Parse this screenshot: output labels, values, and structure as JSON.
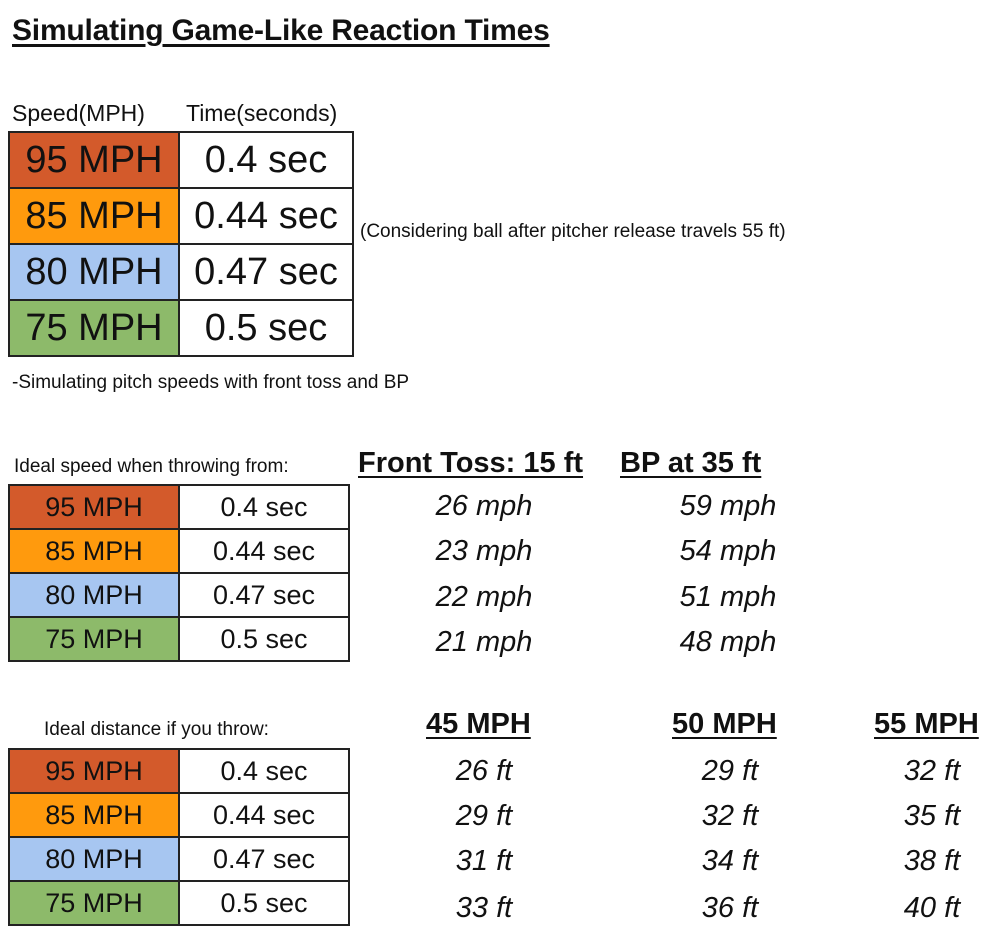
{
  "title": "Simulating Game-Like Reaction Times",
  "colors": {
    "p95": "#d35a2b",
    "p85": "#ff9a0d",
    "p80": "#a7c6f1",
    "p75": "#8dba6a"
  },
  "table1": {
    "header_speed": "Speed(MPH)",
    "header_time": "Time(seconds)",
    "rows": [
      {
        "speed": "95 MPH",
        "time": "0.4 sec"
      },
      {
        "speed": "85 MPH",
        "time": "0.44 sec"
      },
      {
        "speed": "80 MPH",
        "time": "0.47 sec"
      },
      {
        "speed": "75 MPH",
        "time": "0.5 sec"
      }
    ],
    "side_note": "(Considering ball after pitcher release travels 55 ft)",
    "footnote": "-Simulating pitch speeds with front toss and BP"
  },
  "table2": {
    "label": "Ideal speed when throwing from:",
    "columns": [
      "Front Toss: 15 ft",
      "BP at 35 ft"
    ],
    "rows": [
      {
        "speed": "95 MPH",
        "time": "0.4 sec",
        "values": [
          "26 mph",
          "59 mph"
        ]
      },
      {
        "speed": "85 MPH",
        "time": "0.44 sec",
        "values": [
          "23 mph",
          "54 mph"
        ]
      },
      {
        "speed": "80 MPH",
        "time": "0.47 sec",
        "values": [
          "22 mph",
          "51 mph"
        ]
      },
      {
        "speed": "75 MPH",
        "time": "0.5 sec",
        "values": [
          "21 mph",
          "48 mph"
        ]
      }
    ]
  },
  "table3": {
    "label": "Ideal distance if you throw:",
    "columns": [
      "45 MPH",
      "50 MPH",
      "55 MPH"
    ],
    "rows": [
      {
        "speed": "95 MPH",
        "time": "0.4 sec",
        "values": [
          "26 ft",
          "29 ft",
          "32 ft"
        ]
      },
      {
        "speed": "85 MPH",
        "time": "0.44 sec",
        "values": [
          "29 ft",
          "32 ft",
          "35 ft"
        ]
      },
      {
        "speed": "80 MPH",
        "time": "0.47 sec",
        "values": [
          "31 ft",
          "34 ft",
          "38 ft"
        ]
      },
      {
        "speed": "75 MPH",
        "time": "0.5 sec",
        "values": [
          "33 ft",
          "36 ft",
          "40 ft"
        ]
      }
    ]
  }
}
